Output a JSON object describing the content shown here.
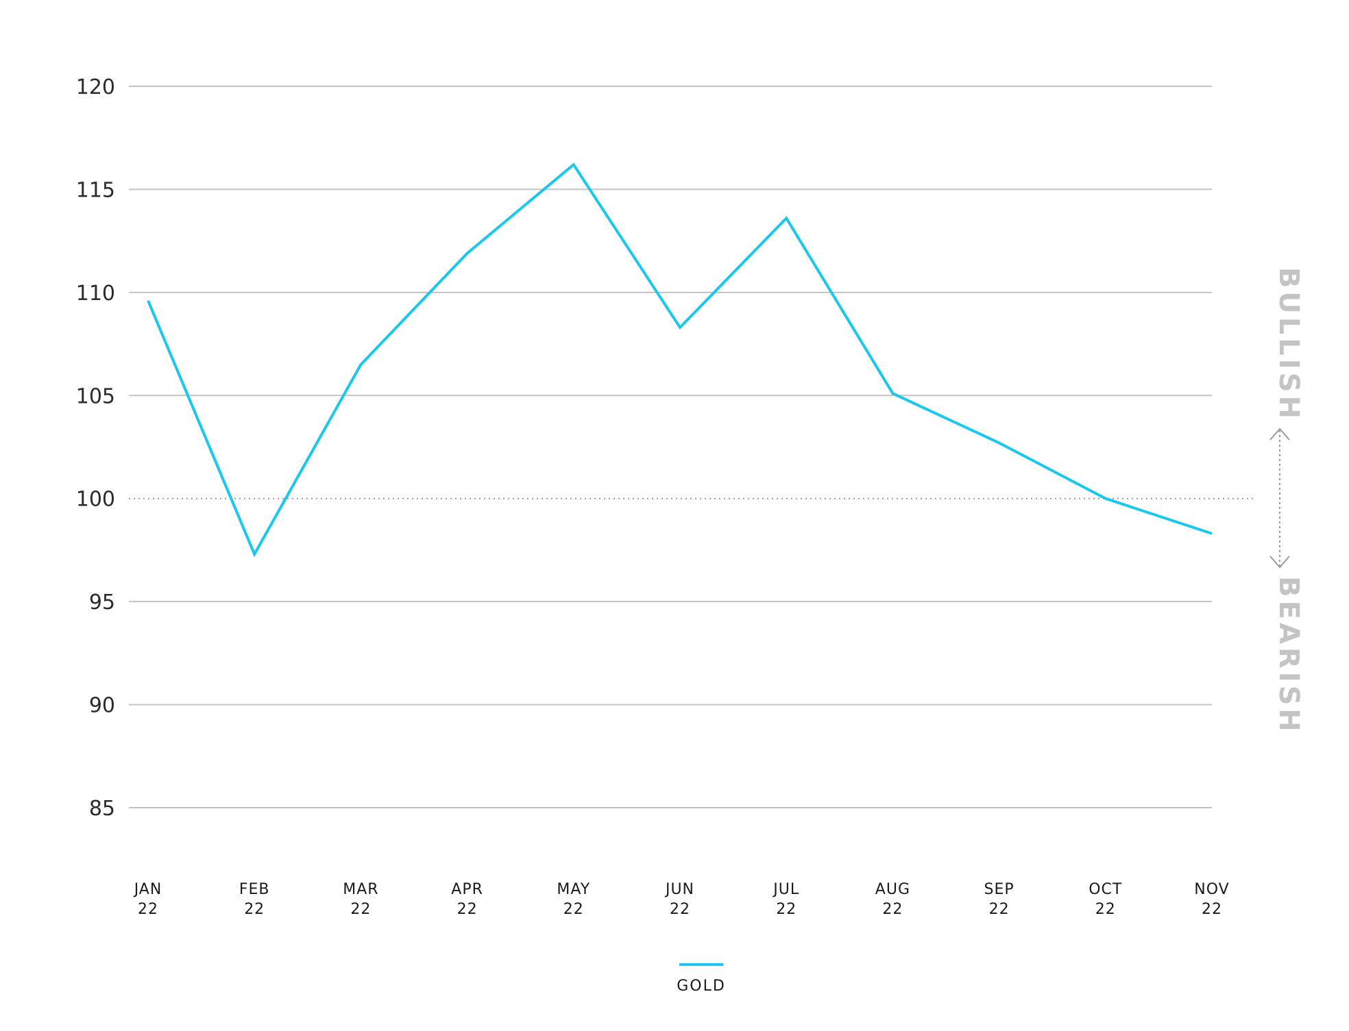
{
  "chart_data": {
    "type": "line",
    "x": [
      "JAN 22",
      "FEB 22",
      "MAR 22",
      "APR 22",
      "MAY 22",
      "JUN 22",
      "JUL 22",
      "AUG 22",
      "SEP 22",
      "OCT 22",
      "NOV 22"
    ],
    "x_tick_lines": [
      [
        "JAN",
        "22"
      ],
      [
        "FEB",
        "22"
      ],
      [
        "MAR",
        "22"
      ],
      [
        "APR",
        "22"
      ],
      [
        "MAY",
        "22"
      ],
      [
        "JUN",
        "22"
      ],
      [
        "JUL",
        "22"
      ],
      [
        "AUG",
        "22"
      ],
      [
        "SEP",
        "22"
      ],
      [
        "OCT",
        "22"
      ],
      [
        "NOV",
        "22"
      ]
    ],
    "series": [
      {
        "name": "GOLD",
        "color": "#19c8ec",
        "values": [
          109.6,
          97.3,
          106.5,
          111.9,
          116.2,
          108.3,
          113.6,
          105.1,
          102.7,
          100.0,
          98.3
        ]
      }
    ],
    "yticks": [
      85,
      90,
      95,
      100,
      105,
      110,
      115,
      120
    ],
    "ylim": [
      82,
      121
    ],
    "baseline": 100,
    "grid": true,
    "legend_position": "bottom-center",
    "sentiment_labels": {
      "upper": "BULLISH",
      "lower": "BEARISH"
    },
    "colors": {
      "grid": "#c3c3c3",
      "baseline": "#9a9a9a",
      "sentiment": "#c4c4c4"
    }
  }
}
